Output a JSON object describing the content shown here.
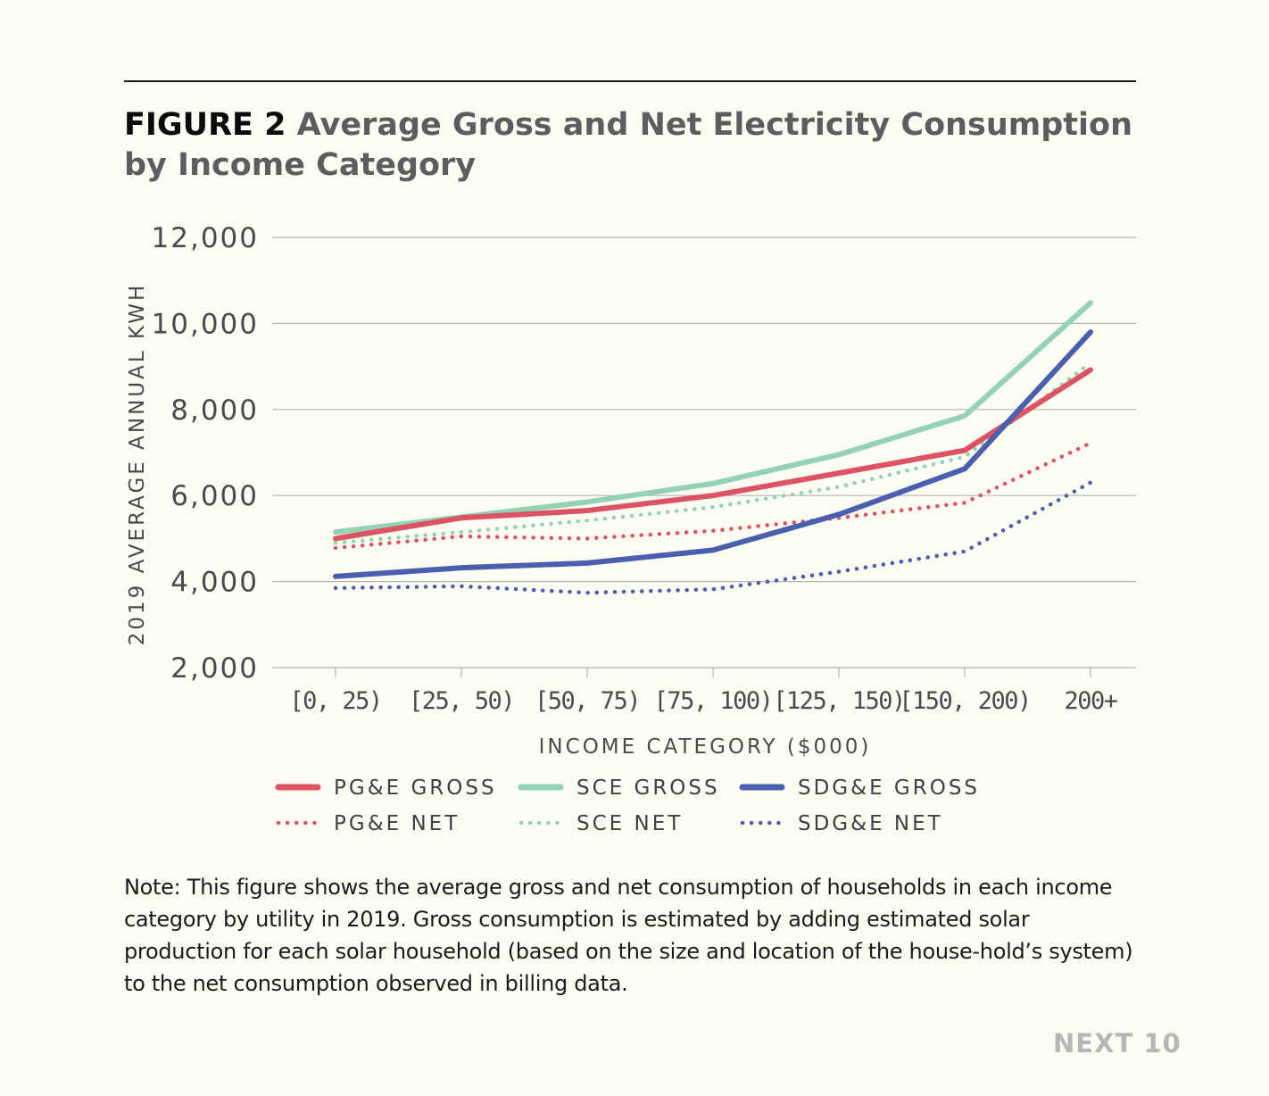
{
  "header": {
    "figure_label": "FIGURE 2",
    "title": "Average Gross and Net Electricity Consumption by Income Category"
  },
  "chart_data": {
    "type": "line",
    "ylabel": "2019 AVERAGE ANNUAL KWH",
    "xlabel": "INCOME CATEGORY ($000)",
    "ylim": [
      2000,
      12000
    ],
    "yticks": [
      2000,
      4000,
      6000,
      8000,
      10000,
      12000
    ],
    "ytick_labels": [
      "2,000",
      "4,000",
      "6,000",
      "8,000",
      "10,000",
      "12,000"
    ],
    "categories": [
      "[0, 25)",
      "[25, 50)",
      "[50, 75)",
      "[75, 100)",
      "[125, 150)",
      "[150, 200)",
      "200+"
    ],
    "grid": "horizontal",
    "legend_position": "bottom",
    "series": [
      {
        "name": "PG&E GROSS",
        "style": "solid",
        "color": "#dc5363",
        "values": [
          5000,
          5480,
          5650,
          6000,
          6520,
          7050,
          8920
        ]
      },
      {
        "name": "SCE GROSS",
        "style": "solid",
        "color": "#93d3b2",
        "values": [
          5150,
          5500,
          5850,
          6280,
          6950,
          7850,
          10480
        ]
      },
      {
        "name": "SDG&E GROSS",
        "style": "solid",
        "color": "#4a5fae",
        "values": [
          4120,
          4320,
          4430,
          4730,
          5560,
          6620,
          9800
        ]
      },
      {
        "name": "PG&E NET",
        "style": "dotted",
        "color": "#dc5363",
        "values": [
          4780,
          5050,
          5000,
          5180,
          5480,
          5830,
          7220
        ]
      },
      {
        "name": "SCE NET",
        "style": "dotted",
        "color": "#93d3b2",
        "values": [
          4900,
          5150,
          5420,
          5730,
          6200,
          6900,
          9080
        ]
      },
      {
        "name": "SDG&E NET",
        "style": "dotted",
        "color": "#4a5fae",
        "values": [
          3850,
          3890,
          3740,
          3820,
          4230,
          4700,
          6300
        ]
      }
    ]
  },
  "note": "Note: This figure shows the average gross and net consumption of households in each income category by utility in 2019. Gross consumption is estimated by adding estimated solar production for each solar household (based on the size and location of the house-hold’s system) to the net consumption observed in billing data.",
  "brand": "NEXT 10"
}
